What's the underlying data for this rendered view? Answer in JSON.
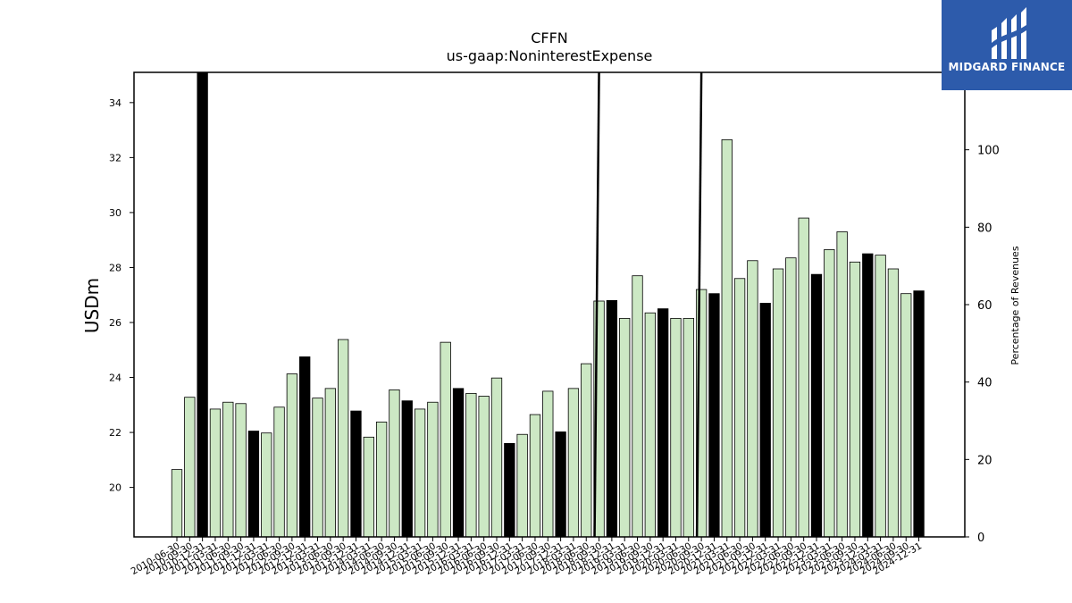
{
  "chart_data": {
    "type": "bar",
    "title": "CFFN",
    "subtitle": "us-gaap:NoninterestExpense",
    "ylabel": "USDm",
    "y2label": "Percentage of Revenues",
    "ylim": [
      18.2,
      35.1
    ],
    "y2lim": [
      0,
      120
    ],
    "yticks": [
      20,
      22,
      24,
      26,
      28,
      30,
      32,
      34
    ],
    "y2ticks": [
      0,
      20,
      40,
      60,
      80,
      100
    ],
    "grid": false,
    "colors": {
      "quarter_bar": "#cce8c4",
      "annual_bar": "#000000",
      "line": "#000000"
    },
    "categories": [
      "2010-06-30",
      "2010-09-30",
      "2010-12-31",
      "2011-03-31",
      "2011-06-30",
      "2011-09-30",
      "2011-12-31",
      "2012-03-31",
      "2012-06-30",
      "2012-09-30",
      "2012-12-31",
      "2013-03-31",
      "2013-06-30",
      "2013-09-30",
      "2013-12-31",
      "2014-03-31",
      "2014-06-30",
      "2014-09-30",
      "2014-12-31",
      "2015-03-31",
      "2015-06-30",
      "2015-09-30",
      "2015-12-31",
      "2016-03-31",
      "2016-06-30",
      "2016-09-30",
      "2016-12-31",
      "2017-03-31",
      "2017-06-30",
      "2017-09-30",
      "2017-12-31",
      "2018-03-31",
      "2018-06-30",
      "2018-09-30",
      "2018-12-31",
      "2019-03-31",
      "2019-06-30",
      "2019-09-30",
      "2019-12-31",
      "2020-03-31",
      "2020-06-30",
      "2020-09-30",
      "2020-12-31",
      "2021-03-31",
      "2021-06-30",
      "2021-09-30",
      "2021-12-31",
      "2022-03-31",
      "2022-06-30",
      "2022-09-30",
      "2022-12-31",
      "2023-03-31",
      "2023-06-30",
      "2023-09-30",
      "2023-12-31",
      "2024-03-31",
      "2024-06-30",
      "2024-09-30",
      "2024-12-31"
    ],
    "series": [
      {
        "values": [
          20.65,
          23.28,
          35.1,
          22.85,
          23.1,
          23.05,
          22.05,
          21.98,
          22.92,
          24.13,
          24.75,
          23.25,
          23.6,
          25.38,
          22.78,
          21.83,
          22.38,
          23.55,
          23.15,
          22.85,
          23.1,
          25.28,
          23.6,
          23.42,
          23.32,
          23.98,
          21.6,
          21.93,
          22.65,
          23.5,
          22.02,
          23.6,
          24.5,
          26.78,
          26.8,
          26.15,
          27.7,
          26.35,
          26.5,
          26.15,
          26.15,
          27.2,
          27.05,
          32.65,
          27.6,
          28.25,
          26.7,
          27.95,
          28.35,
          29.8,
          27.75,
          28.65,
          29.3,
          28.2,
          28.5,
          28.45,
          27.95,
          27.05,
          27.15
        ],
        "annual": [
          false,
          false,
          true,
          false,
          false,
          false,
          true,
          false,
          false,
          false,
          true,
          false,
          false,
          false,
          true,
          false,
          false,
          false,
          true,
          false,
          false,
          false,
          true,
          false,
          false,
          false,
          true,
          false,
          false,
          false,
          true,
          false,
          false,
          false,
          true,
          false,
          false,
          false,
          true,
          false,
          false,
          false,
          true,
          false,
          false,
          false,
          true,
          false,
          false,
          false,
          true,
          false,
          false,
          false,
          true,
          false,
          false,
          false,
          true
        ]
      }
    ],
    "line_series": [
      {
        "x": "2018-09-30",
        "y2_from": 0,
        "y2_to": 125
      },
      {
        "x": "2020-09-30",
        "y2_from": 0,
        "y2_to": 125
      }
    ]
  },
  "logo": {
    "text": "MIDGARD FINANCE"
  }
}
